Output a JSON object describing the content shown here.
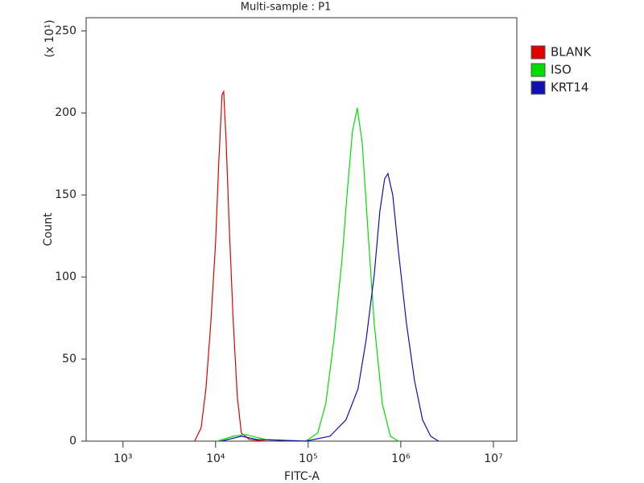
{
  "chart_data": {
    "type": "line",
    "title": "Multi-sample : P1",
    "x_label": "FITC-A",
    "y_label": "Count",
    "y_multiplier": "(x 10¹)",
    "x_scale": "log",
    "xlim": [
      400,
      17900000
    ],
    "xticks": [
      {
        "value": 1000,
        "label": "10³"
      },
      {
        "value": 10000,
        "label": "10⁴"
      },
      {
        "value": 100000,
        "label": "10⁵"
      },
      {
        "value": 1000000,
        "label": "10⁶"
      },
      {
        "value": 10000000,
        "label": "10⁷"
      }
    ],
    "ylim": [
      0,
      258
    ],
    "yticks": [
      0,
      50,
      100,
      150,
      200,
      250
    ],
    "legend": "right",
    "series": [
      {
        "name": "BLANK",
        "color": "#e00000",
        "x": [
          5940,
          6970,
          7870,
          8880,
          10000,
          10830,
          11740,
          12230,
          12970,
          14060,
          15540,
          17170,
          18970,
          23170,
          34570
        ],
        "values": [
          0,
          8,
          32,
          72,
          121,
          170,
          211,
          213,
          184,
          130,
          72,
          27,
          5,
          1,
          0
        ]
      },
      {
        "name": "ISO",
        "color": "#00dd00",
        "x": [
          10400,
          15540,
          21000,
          34570,
          94200,
          127000,
          155000,
          190000,
          232000,
          267000,
          301000,
          339000,
          383000,
          440000,
          516000,
          631000,
          771000,
          942000
        ],
        "values": [
          0,
          3,
          4,
          1,
          0,
          5,
          23,
          62,
          111,
          155,
          189,
          203,
          182,
          130,
          72,
          23,
          3,
          0
        ]
      },
      {
        "name": "KRT14",
        "color": "#1010b0",
        "x": [
          11500,
          18970,
          28300,
          94200,
          172000,
          256000,
          346000,
          423000,
          516000,
          594000,
          670000,
          726000,
          819000,
          942000,
          1150000,
          1406000,
          1718000,
          2100000,
          2560000
        ],
        "values": [
          0,
          3,
          1,
          0,
          3,
          13,
          32,
          62,
          101,
          140,
          160,
          163,
          150,
          116,
          72,
          37,
          13,
          3,
          0
        ]
      }
    ]
  }
}
